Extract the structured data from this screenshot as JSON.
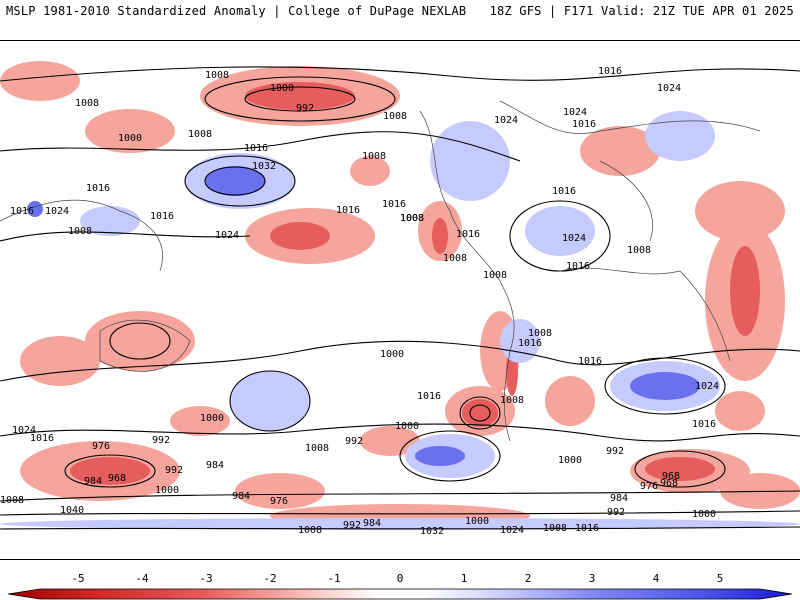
{
  "header": {
    "left": "MSLP 1981-2010 Standardized Anomaly | College of DuPage NEXLAB",
    "right": "18Z GFS | F171 Valid: 21Z TUE APR 01 2025"
  },
  "colorbar": {
    "ticks": [
      "-5",
      "-4",
      "-3",
      "-2",
      "-1",
      "0",
      "1",
      "2",
      "3",
      "4",
      "5"
    ],
    "colors": [
      "#a00000",
      "#d42a2a",
      "#e85a5a",
      "#f58a8a",
      "#fbc0b8",
      "#ffffff",
      "#cfd4ff",
      "#a8aefa",
      "#7f86f2",
      "#4f57ea",
      "#1a1ad8"
    ]
  },
  "isobar_labels": [
    "1008",
    "1000",
    "992",
    "1016",
    "1024",
    "1008",
    "1024",
    "1016",
    "1008",
    "1000",
    "1008",
    "1024",
    "1032",
    "1008",
    "1016",
    "1016",
    "1008",
    "1016",
    "1016",
    "1024",
    "1024",
    "1008",
    "1016",
    "1008",
    "1008",
    "1016",
    "1008",
    "1016",
    "1008",
    "1016",
    "1024",
    "1016",
    "1008",
    "1016",
    "1016",
    "1000",
    "1024",
    "1016",
    "992",
    "1008",
    "1000",
    "1000",
    "1008",
    "976",
    "992",
    "968",
    "984",
    "992",
    "968",
    "984",
    "1000",
    "984",
    "976",
    "1008",
    "1040",
    "992",
    "984",
    "976",
    "968",
    "992",
    "1000",
    "1016",
    "1000",
    "1008",
    "992",
    "984",
    "1032",
    "1000",
    "1024",
    "1008",
    "1016",
    "1024",
    "1016"
  ]
}
